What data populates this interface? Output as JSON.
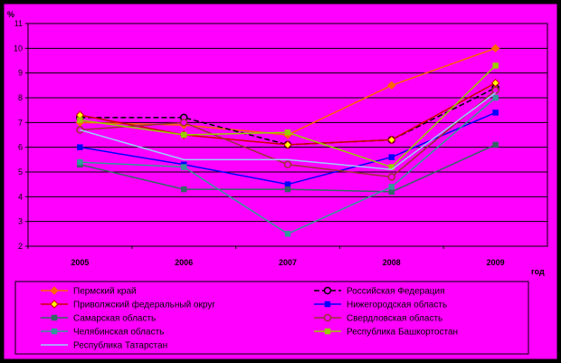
{
  "chart_data": {
    "type": "line",
    "title": "",
    "ylabel": "%",
    "xlabel": "год",
    "x": [
      "2005",
      "2006",
      "2007",
      "2008",
      "2009"
    ],
    "ylim": [
      2,
      11
    ],
    "yticks": [
      2,
      3,
      4,
      5,
      6,
      7,
      8,
      9,
      10,
      11
    ],
    "grid": true,
    "legend_position": "bottom",
    "colors": {
      "page_background": "#000000",
      "chart_background": "#ff00ff",
      "plot_background": "#ff00ff",
      "gridline": "#000000"
    },
    "series": [
      {
        "name": "Пермский край",
        "values": [
          7.0,
          6.9,
          6.5,
          8.5,
          10.0
        ],
        "color": "#ff6600",
        "marker": "diamond",
        "dash": "solid"
      },
      {
        "name": "Российская Федерация",
        "values": [
          7.2,
          7.2,
          6.1,
          6.3,
          8.4
        ],
        "color": "#000000",
        "marker": "circle",
        "dash": "dash"
      },
      {
        "name": "Приволжский федеральный округ",
        "values": [
          7.3,
          6.5,
          6.1,
          6.3,
          8.6
        ],
        "color": "#cc0000",
        "marker": "diamond-yellow",
        "dash": "solid"
      },
      {
        "name": "Нижегородская область",
        "values": [
          6.0,
          5.3,
          4.5,
          5.6,
          7.4
        ],
        "color": "#0000ff",
        "marker": "square",
        "dash": "solid"
      },
      {
        "name": "Самарская область",
        "values": [
          5.3,
          4.3,
          4.3,
          4.2,
          6.1
        ],
        "color": "#336666",
        "marker": "square",
        "dash": "solid"
      },
      {
        "name": "Свердловская область",
        "values": [
          6.7,
          7.0,
          5.3,
          4.8,
          8.3
        ],
        "color": "#993333",
        "marker": "circle",
        "dash": "solid"
      },
      {
        "name": "Челябинская область",
        "values": [
          5.4,
          5.2,
          2.5,
          4.4,
          8.0
        ],
        "color": "#339999",
        "marker": "square",
        "dash": "solid"
      },
      {
        "name": "Республика Башкортостан",
        "values": [
          7.1,
          6.5,
          6.6,
          5.2,
          9.3
        ],
        "color": "#99cc00",
        "marker": "square",
        "dash": "solid"
      },
      {
        "name": "Республика Татарстан",
        "values": [
          6.7,
          5.5,
          5.5,
          5.1,
          8.2
        ],
        "color": "#99ccff",
        "marker": "none",
        "dash": "solid"
      }
    ]
  }
}
